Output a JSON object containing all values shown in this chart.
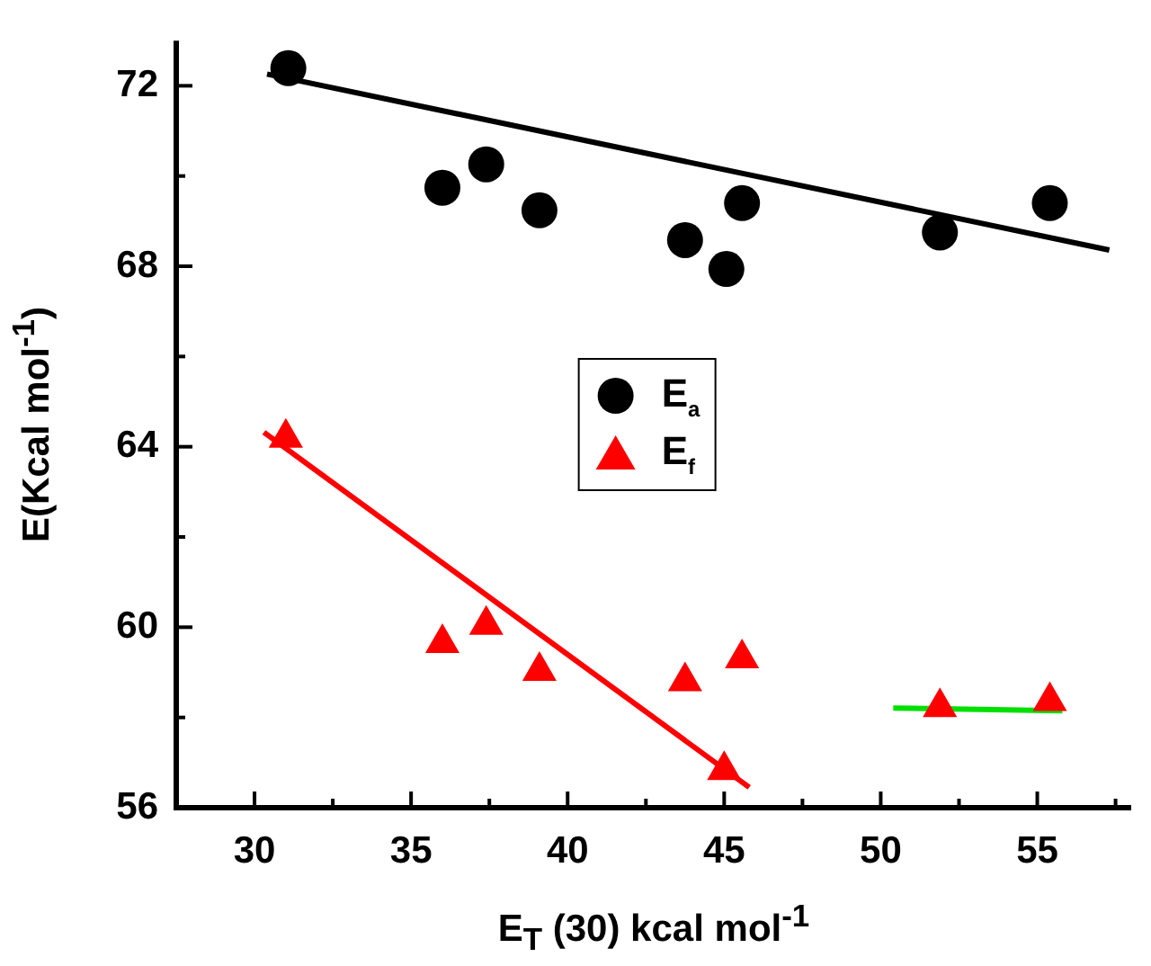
{
  "chart_data": {
    "type": "scatter",
    "xlabel": "E$_{T}$ (30) kcal mol$^{-1}$",
    "ylabel": "E(Kcal mol$^{-1}$)",
    "xlim": [
      27.5,
      58
    ],
    "ylim": [
      56,
      73
    ],
    "xticks": [
      30,
      {
        "value": 32.5,
        "label": null
      },
      35,
      {
        "value": 37.5,
        "label": null
      },
      40,
      {
        "value": 42.5,
        "label": null
      },
      45,
      {
        "value": 47.5,
        "label": null
      },
      50,
      {
        "value": 52.5,
        "label": null
      },
      55,
      {
        "value": 57.5,
        "label": null
      }
    ],
    "yticks": [
      56,
      {
        "value": 58,
        "label": null
      },
      60,
      {
        "value": 62,
        "label": null
      },
      64,
      {
        "value": 66,
        "label": null
      },
      68,
      {
        "value": 70,
        "label": null
      },
      72
    ],
    "grid": false,
    "legend": "center",
    "series": [
      {
        "name": "E$_{a}$",
        "type": "scatter",
        "marker": "circle",
        "color": "#000000",
        "x": [
          31.08,
          36.0,
          37.4,
          39.1,
          43.75,
          45.07,
          45.57,
          51.89,
          55.4
        ],
        "values": [
          72.39,
          69.74,
          70.26,
          69.24,
          68.58,
          67.94,
          69.4,
          68.75,
          69.4
        ]
      },
      {
        "name": "E$_{f}$",
        "type": "scatter",
        "marker": "triangle",
        "color": "#ff0000",
        "x": [
          31.0,
          36.0,
          37.4,
          39.1,
          43.75,
          45.57,
          45.0,
          51.89,
          55.4
        ],
        "values": [
          64.2,
          59.65,
          60.05,
          59.03,
          58.8,
          59.31,
          56.83,
          58.23,
          58.36
        ]
      },
      {
        "type": "line",
        "marker": "none",
        "color": "#000000",
        "x": [
          30.4,
          57.3
        ],
        "values": [
          72.26,
          68.36
        ]
      },
      {
        "type": "line",
        "marker": "none",
        "color": "#ff0000",
        "x": [
          30.3,
          45.8
        ],
        "values": [
          64.32,
          56.45
        ]
      },
      {
        "type": "line",
        "marker": "none",
        "color": "#00e000",
        "x": [
          50.4,
          55.8
        ],
        "values": [
          58.21,
          58.15
        ]
      }
    ]
  }
}
